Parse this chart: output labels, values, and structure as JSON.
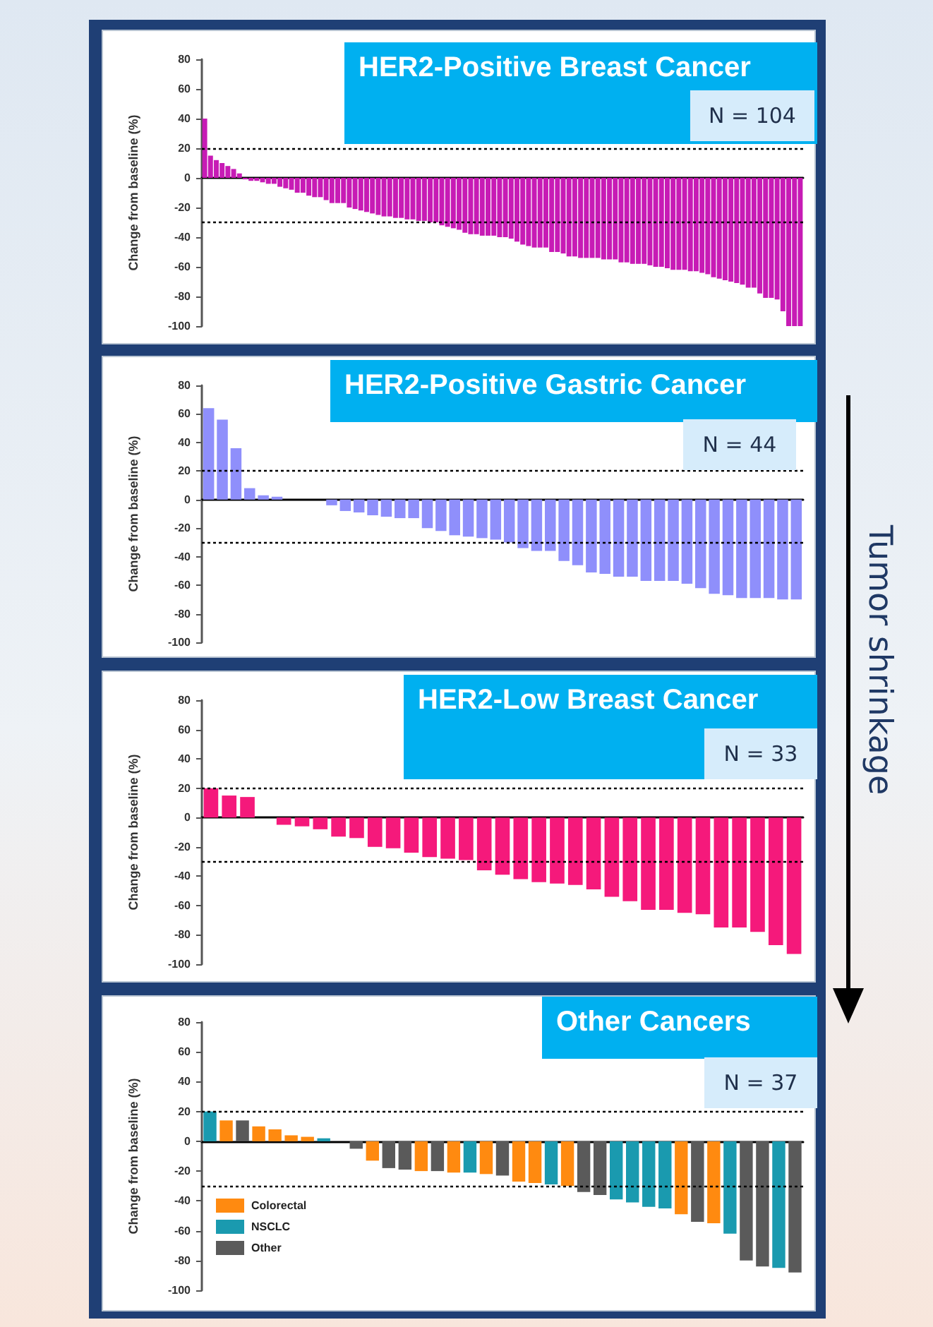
{
  "chart_data": [
    {
      "type": "bar",
      "title": "HER2-Positive Breast Cancer",
      "subtitle": "N = 104",
      "ylabel": "Change from baseline (%)",
      "categories": [
        null,
        null,
        null,
        null,
        null,
        null,
        null,
        null,
        null,
        null,
        null,
        null,
        null,
        null,
        null,
        null,
        null,
        null,
        null,
        null,
        null,
        null,
        null,
        null,
        null,
        null,
        null,
        null,
        null,
        null,
        null,
        null,
        null,
        null,
        null,
        null,
        null,
        null,
        null,
        null,
        null,
        null,
        null,
        null,
        null,
        null,
        null,
        null,
        null,
        null,
        null,
        null,
        null,
        null,
        null,
        null,
        null,
        null,
        null,
        null,
        null,
        null,
        null,
        null,
        null,
        null,
        null,
        null,
        null,
        null,
        null,
        null,
        null,
        null,
        null,
        null,
        null,
        null,
        null,
        null,
        null,
        null,
        null,
        null,
        null,
        null,
        null,
        null,
        null,
        null,
        null,
        null,
        null,
        null,
        null,
        null,
        null,
        null,
        null,
        null,
        null,
        null,
        null,
        null
      ],
      "values": [
        40,
        15,
        12,
        10,
        8,
        6,
        3,
        -1,
        -2,
        -2,
        -3,
        -4,
        -4,
        -6,
        -7,
        -8,
        -10,
        -10,
        -12,
        -13,
        -13,
        -15,
        -17,
        -17,
        -17,
        -20,
        -21,
        -22,
        -23,
        -24,
        -25,
        -26,
        -26,
        -27,
        -27,
        -28,
        -28,
        -29,
        -29,
        -30,
        -30,
        -32,
        -33,
        -34,
        -35,
        -37,
        -38,
        -38,
        -39,
        -39,
        -39,
        -40,
        -40,
        -41,
        -43,
        -45,
        -46,
        -47,
        -47,
        -47,
        -50,
        -50,
        -51,
        -53,
        -53,
        -54,
        -54,
        -54,
        -54,
        -55,
        -55,
        -55,
        -57,
        -57,
        -58,
        -58,
        -58,
        -59,
        -60,
        -60,
        -61,
        -62,
        -62,
        -62,
        -63,
        -63,
        -64,
        -65,
        -67,
        -68,
        -69,
        -70,
        -71,
        -72,
        -74,
        -74,
        -78,
        -81,
        -81,
        -82,
        -90,
        -100,
        -100,
        -100
      ],
      "color": "#c71bb5",
      "ylim": [
        -100,
        80
      ],
      "yticks": [
        -100,
        -80,
        -60,
        -40,
        -20,
        0,
        20,
        40,
        60,
        80
      ],
      "tick_labels": "y",
      "ref_lines": [
        {
          "axis": "y",
          "value": 20,
          "line_style": "dotted"
        },
        {
          "axis": "y",
          "value": -30,
          "line_style": "dotted"
        }
      ]
    },
    {
      "type": "bar",
      "title": "HER2-Positive Gastric Cancer",
      "subtitle": "N = 44",
      "ylabel": "Change from baseline (%)",
      "categories": [
        null,
        null,
        null,
        null,
        null,
        null,
        null,
        null,
        null,
        null,
        null,
        null,
        null,
        null,
        null,
        null,
        null,
        null,
        null,
        null,
        null,
        null,
        null,
        null,
        null,
        null,
        null,
        null,
        null,
        null,
        null,
        null,
        null,
        null,
        null,
        null,
        null,
        null,
        null,
        null,
        null,
        null,
        null,
        null
      ],
      "values": [
        64,
        56,
        36,
        8,
        3,
        2,
        0,
        0,
        0,
        -4,
        -8,
        -9,
        -11,
        -12,
        -13,
        -13,
        -20,
        -22,
        -25,
        -26,
        -27,
        -28,
        -30,
        -34,
        -36,
        -36,
        -43,
        -46,
        -51,
        -52,
        -54,
        -54,
        -57,
        -57,
        -57,
        -59,
        -62,
        -66,
        -67,
        -69,
        -69,
        -69,
        -70,
        -70
      ],
      "color": "#8f8ffb",
      "ylim": [
        -100,
        80
      ],
      "yticks": [
        -100,
        -80,
        -60,
        -40,
        -20,
        0,
        20,
        40,
        60,
        80
      ],
      "tick_labels": "y",
      "ref_lines": [
        {
          "axis": "y",
          "value": 20,
          "line_style": "dotted"
        },
        {
          "axis": "y",
          "value": -30,
          "line_style": "dotted"
        }
      ],
      "annotations": [
        "Tumor shrinkage"
      ]
    },
    {
      "type": "bar",
      "title": "HER2-Low Breast Cancer",
      "subtitle": "N = 33",
      "ylabel": "Change from baseline (%)",
      "categories": [
        null,
        null,
        null,
        null,
        null,
        null,
        null,
        null,
        null,
        null,
        null,
        null,
        null,
        null,
        null,
        null,
        null,
        null,
        null,
        null,
        null,
        null,
        null,
        null,
        null,
        null,
        null,
        null,
        null,
        null,
        null,
        null,
        null
      ],
      "values": [
        20,
        15,
        14,
        0,
        -5,
        -6,
        -8,
        -13,
        -14,
        -20,
        -21,
        -24,
        -27,
        -28,
        -29,
        -36,
        -39,
        -42,
        -44,
        -45,
        -46,
        -49,
        -54,
        -57,
        -63,
        -63,
        -65,
        -66,
        -75,
        -75,
        -78,
        -87,
        -93
      ],
      "color": "#f5197b",
      "ylim": [
        -100,
        80
      ],
      "yticks": [
        -100,
        -80,
        -60,
        -40,
        -20,
        0,
        20,
        40,
        60,
        80
      ],
      "tick_labels": "y",
      "ref_lines": [
        {
          "axis": "y",
          "value": 20,
          "line_style": "dotted"
        },
        {
          "axis": "y",
          "value": -30,
          "line_style": "dotted"
        }
      ]
    },
    {
      "type": "bar",
      "title": "Other Cancers",
      "subtitle": "N = 37",
      "ylabel": "Change from baseline (%)",
      "categories": [
        null,
        null,
        null,
        null,
        null,
        null,
        null,
        null,
        null,
        null,
        null,
        null,
        null,
        null,
        null,
        null,
        null,
        null,
        null,
        null,
        null,
        null,
        null,
        null,
        null,
        null,
        null,
        null,
        null,
        null,
        null,
        null,
        null,
        null,
        null,
        null,
        null
      ],
      "stacked": true,
      "series": [
        {
          "name": "Colorectal",
          "color": "#ff8a10",
          "values": [
            null,
            14,
            null,
            10,
            8,
            4,
            3,
            null,
            null,
            null,
            -13,
            null,
            null,
            -20,
            null,
            -21,
            null,
            -22,
            null,
            -27,
            -28,
            null,
            -30,
            null,
            null,
            null,
            null,
            null,
            null,
            -49,
            null,
            -55,
            null,
            null,
            null,
            null,
            null
          ]
        },
        {
          "name": "NSCLC",
          "color": "#1a9aaf",
          "values": [
            20,
            null,
            null,
            null,
            null,
            null,
            null,
            2,
            null,
            null,
            null,
            null,
            null,
            null,
            null,
            null,
            -21,
            null,
            null,
            null,
            null,
            -29,
            null,
            null,
            null,
            -39,
            -41,
            -44,
            -45,
            null,
            null,
            null,
            -62,
            null,
            null,
            -85,
            null
          ]
        },
        {
          "name": "Other",
          "color": "#5a5a5a",
          "values": [
            null,
            null,
            14,
            null,
            null,
            null,
            null,
            null,
            0,
            -5,
            null,
            -18,
            -19,
            null,
            -20,
            null,
            null,
            null,
            -23,
            null,
            null,
            null,
            null,
            -34,
            -36,
            null,
            null,
            null,
            null,
            null,
            -54,
            null,
            null,
            -80,
            -84,
            null,
            -88
          ]
        }
      ],
      "legend": "bottom left",
      "ylim": [
        -100,
        80
      ],
      "yticks": [
        -100,
        -80,
        -60,
        -40,
        -20,
        0,
        20,
        40,
        60,
        80
      ],
      "tick_labels": "y",
      "ref_lines": [
        {
          "axis": "y",
          "value": 20,
          "line_style": "dotted"
        },
        {
          "axis": "y",
          "value": -30,
          "line_style": "dotted"
        }
      ]
    }
  ]
}
